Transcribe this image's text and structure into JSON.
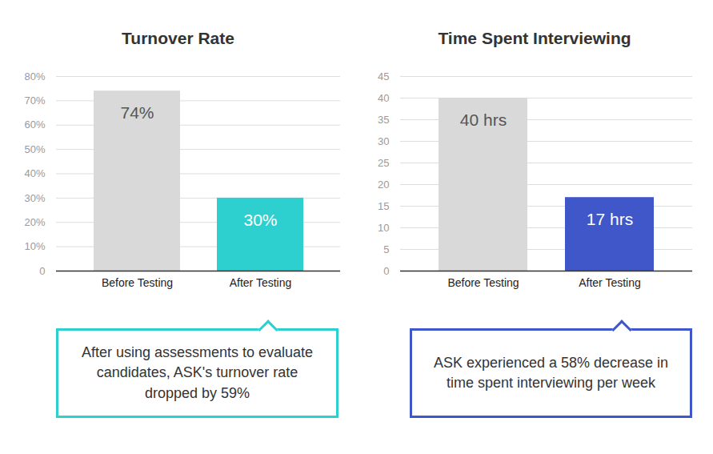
{
  "chart_data": [
    {
      "type": "bar",
      "title": "Turnover Rate",
      "categories": [
        "Before Testing",
        "After Testing"
      ],
      "values": [
        74,
        30
      ],
      "value_labels": [
        "74%",
        "30%"
      ],
      "colors": [
        "#d9d9d9",
        "#2ecfcf"
      ],
      "ylim": [
        0,
        80
      ],
      "yticks": [
        0,
        {
          "value": 10,
          "label": "10%"
        },
        {
          "value": 20,
          "label": "20%"
        },
        {
          "value": 30,
          "label": "30%"
        },
        {
          "value": 40,
          "label": "40%"
        },
        {
          "value": 50,
          "label": "50%"
        },
        {
          "value": 60,
          "label": "60%"
        },
        {
          "value": 70,
          "label": "70%"
        },
        {
          "value": 80,
          "label": "80%"
        }
      ],
      "grid": true,
      "data_labels": true,
      "annotation": "After using assessments to evaluate candidates, ASK's turnover rate dropped by 59%"
    },
    {
      "type": "bar",
      "title": "Time Spent Interviewing",
      "categories": [
        "Before Testing",
        "After Testing"
      ],
      "values": [
        40,
        17
      ],
      "value_labels": [
        "40 hrs",
        "17 hrs"
      ],
      "colors": [
        "#d9d9d9",
        "#3f57c9"
      ],
      "ylim": [
        0,
        45
      ],
      "yticks": [
        0,
        5,
        10,
        15,
        20,
        25,
        30,
        35,
        40,
        45
      ],
      "grid": true,
      "data_labels": true,
      "annotation": "ASK experienced a 58% decrease in time spent interviewing per week"
    }
  ]
}
